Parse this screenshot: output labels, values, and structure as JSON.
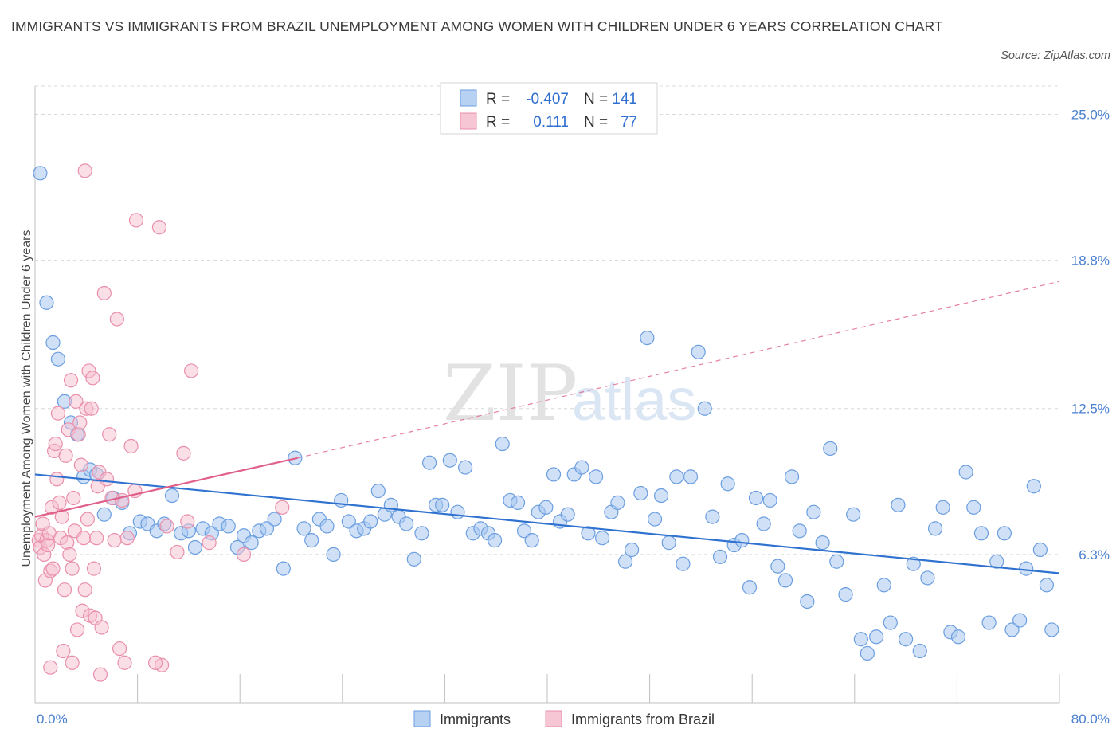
{
  "header": {
    "title": "IMMIGRANTS VS IMMIGRANTS FROM BRAZIL UNEMPLOYMENT AMONG WOMEN WITH CHILDREN UNDER 6 YEARS CORRELATION CHART",
    "source": "Source: ZipAtlas.com"
  },
  "watermark": {
    "zip": "ZIP",
    "atlas": "atlas"
  },
  "legend": {
    "rows": [
      {
        "r_label": "R =",
        "r_value": "-0.407",
        "n_label": "N =",
        "n_value": "141"
      },
      {
        "r_label": "R =",
        "r_value": "0.111",
        "n_label": "N =",
        "n_value": "77"
      }
    ]
  },
  "bottom_legend": {
    "items": [
      "Immigrants",
      "Immigrants from Brazil"
    ]
  },
  "colors": {
    "blue_fill": "#a9c8f0",
    "blue_stroke": "#6b9ee0",
    "blue_line": "#2f72cf",
    "pink_fill": "#f6bfd0",
    "pink_stroke": "#e98fab",
    "pink_line": "#e0608a",
    "tick_text": "#4a7fd0",
    "grid": "#d8d8d8"
  },
  "chart_data": {
    "type": "scatter",
    "title": "IMMIGRANTS VS IMMIGRANTS FROM BRAZIL UNEMPLOYMENT AMONG WOMEN WITH CHILDREN UNDER 6 YEARS CORRELATION CHART",
    "xlabel": "",
    "ylabel": "Unemployment Among Women with Children Under 6 years",
    "xlim": [
      0,
      80
    ],
    "ylim": [
      0,
      26.2
    ],
    "x_tick_labels": [
      "0.0%",
      "80.0%"
    ],
    "y_ticks": [
      6.3,
      12.5,
      18.8,
      25.0
    ],
    "y_tick_labels": [
      "6.3%",
      "12.5%",
      "18.8%",
      "25.0%"
    ],
    "grid": "horizontal dashed",
    "legend_placement": "top-center",
    "series": [
      {
        "name": "Immigrants",
        "r": -0.407,
        "n": 141,
        "trend": {
          "x": [
            0,
            80
          ],
          "y": [
            9.7,
            5.5
          ],
          "style": "solid"
        },
        "points": [
          [
            0.4,
            22.5
          ],
          [
            0.9,
            17.0
          ],
          [
            1.4,
            15.3
          ],
          [
            1.8,
            14.6
          ],
          [
            2.3,
            12.8
          ],
          [
            2.8,
            11.9
          ],
          [
            3.3,
            11.4
          ],
          [
            3.8,
            9.6
          ],
          [
            4.3,
            9.9
          ],
          [
            4.8,
            9.7
          ],
          [
            5.4,
            8.0
          ],
          [
            6.1,
            8.7
          ],
          [
            6.8,
            8.5
          ],
          [
            7.4,
            7.2
          ],
          [
            8.2,
            7.7
          ],
          [
            8.8,
            7.6
          ],
          [
            9.5,
            7.3
          ],
          [
            10.1,
            7.6
          ],
          [
            10.7,
            8.8
          ],
          [
            11.4,
            7.2
          ],
          [
            12.0,
            7.3
          ],
          [
            12.5,
            6.6
          ],
          [
            13.1,
            7.4
          ],
          [
            13.8,
            7.2
          ],
          [
            14.4,
            7.6
          ],
          [
            15.1,
            7.5
          ],
          [
            15.8,
            6.6
          ],
          [
            16.3,
            7.1
          ],
          [
            16.9,
            6.8
          ],
          [
            17.5,
            7.3
          ],
          [
            18.1,
            7.4
          ],
          [
            18.7,
            7.8
          ],
          [
            19.4,
            5.7
          ],
          [
            20.3,
            10.4
          ],
          [
            21.0,
            7.4
          ],
          [
            21.6,
            6.9
          ],
          [
            22.2,
            7.8
          ],
          [
            22.8,
            7.5
          ],
          [
            23.3,
            6.3
          ],
          [
            23.9,
            8.6
          ],
          [
            24.5,
            7.7
          ],
          [
            25.1,
            7.3
          ],
          [
            25.7,
            7.4
          ],
          [
            26.2,
            7.7
          ],
          [
            26.8,
            9.0
          ],
          [
            27.3,
            8.0
          ],
          [
            27.8,
            8.4
          ],
          [
            28.4,
            7.9
          ],
          [
            29.0,
            7.6
          ],
          [
            29.6,
            6.1
          ],
          [
            30.2,
            7.2
          ],
          [
            30.8,
            10.2
          ],
          [
            31.3,
            8.4
          ],
          [
            31.8,
            8.4
          ],
          [
            32.4,
            10.3
          ],
          [
            33.0,
            8.1
          ],
          [
            33.6,
            10.0
          ],
          [
            34.2,
            7.2
          ],
          [
            34.8,
            7.4
          ],
          [
            35.4,
            7.2
          ],
          [
            35.9,
            6.9
          ],
          [
            36.5,
            11.0
          ],
          [
            37.1,
            8.6
          ],
          [
            37.7,
            8.5
          ],
          [
            38.2,
            7.3
          ],
          [
            38.8,
            6.9
          ],
          [
            39.3,
            8.1
          ],
          [
            39.9,
            8.3
          ],
          [
            40.5,
            9.7
          ],
          [
            41.0,
            7.7
          ],
          [
            41.6,
            8.0
          ],
          [
            42.1,
            9.7
          ],
          [
            42.7,
            10.0
          ],
          [
            43.2,
            7.2
          ],
          [
            43.8,
            9.6
          ],
          [
            44.3,
            7.0
          ],
          [
            45.0,
            8.1
          ],
          [
            45.5,
            8.5
          ],
          [
            46.1,
            6.0
          ],
          [
            46.6,
            6.5
          ],
          [
            47.3,
            8.9
          ],
          [
            47.8,
            15.5
          ],
          [
            48.4,
            7.8
          ],
          [
            48.9,
            8.8
          ],
          [
            49.5,
            6.8
          ],
          [
            50.1,
            9.6
          ],
          [
            50.6,
            5.9
          ],
          [
            51.2,
            9.6
          ],
          [
            51.8,
            14.9
          ],
          [
            52.3,
            12.5
          ],
          [
            52.9,
            7.9
          ],
          [
            53.5,
            6.2
          ],
          [
            54.1,
            9.3
          ],
          [
            54.6,
            6.7
          ],
          [
            55.2,
            6.9
          ],
          [
            55.8,
            4.9
          ],
          [
            56.3,
            8.7
          ],
          [
            56.9,
            7.6
          ],
          [
            57.4,
            8.6
          ],
          [
            58.0,
            5.8
          ],
          [
            58.6,
            5.2
          ],
          [
            59.1,
            9.6
          ],
          [
            59.7,
            7.3
          ],
          [
            60.3,
            4.3
          ],
          [
            60.8,
            8.1
          ],
          [
            61.5,
            6.8
          ],
          [
            62.1,
            10.8
          ],
          [
            62.6,
            6.0
          ],
          [
            63.3,
            4.6
          ],
          [
            63.9,
            8.0
          ],
          [
            64.5,
            2.7
          ],
          [
            65.0,
            2.1
          ],
          [
            65.7,
            2.8
          ],
          [
            66.3,
            5.0
          ],
          [
            66.8,
            3.4
          ],
          [
            67.4,
            8.4
          ],
          [
            68.0,
            2.7
          ],
          [
            68.6,
            5.9
          ],
          [
            69.1,
            2.2
          ],
          [
            69.7,
            5.3
          ],
          [
            70.3,
            7.4
          ],
          [
            70.9,
            8.3
          ],
          [
            71.5,
            3.0
          ],
          [
            72.1,
            2.8
          ],
          [
            72.7,
            9.8
          ],
          [
            73.3,
            8.3
          ],
          [
            73.9,
            7.2
          ],
          [
            74.5,
            3.4
          ],
          [
            75.1,
            6.0
          ],
          [
            75.7,
            7.2
          ],
          [
            76.3,
            3.1
          ],
          [
            76.9,
            3.5
          ],
          [
            77.4,
            5.7
          ],
          [
            78.0,
            9.2
          ],
          [
            78.5,
            6.5
          ],
          [
            79.0,
            5.0
          ],
          [
            79.4,
            3.1
          ]
        ]
      },
      {
        "name": "Immigrants from Brazil",
        "r": 0.111,
        "n": 77,
        "trend_solid": {
          "x": [
            0,
            20.5
          ],
          "y": [
            7.9,
            10.4
          ]
        },
        "trend_dashed": {
          "x": [
            20.5,
            80
          ],
          "y": [
            10.4,
            17.9
          ]
        },
        "points": [
          [
            0.3,
            6.9
          ],
          [
            0.4,
            6.6
          ],
          [
            0.5,
            7.1
          ],
          [
            0.6,
            7.6
          ],
          [
            0.7,
            6.3
          ],
          [
            0.8,
            5.2
          ],
          [
            0.9,
            6.9
          ],
          [
            1.0,
            6.7
          ],
          [
            1.1,
            7.2
          ],
          [
            1.2,
            5.6
          ],
          [
            1.3,
            8.3
          ],
          [
            1.4,
            5.7
          ],
          [
            1.5,
            10.7
          ],
          [
            1.6,
            11.0
          ],
          [
            1.7,
            9.5
          ],
          [
            1.8,
            12.3
          ],
          [
            1.9,
            8.5
          ],
          [
            2.0,
            7.0
          ],
          [
            2.1,
            7.9
          ],
          [
            2.2,
            2.2
          ],
          [
            2.3,
            4.8
          ],
          [
            2.4,
            10.5
          ],
          [
            2.5,
            6.8
          ],
          [
            2.6,
            11.6
          ],
          [
            2.7,
            6.3
          ],
          [
            2.8,
            13.7
          ],
          [
            2.9,
            5.7
          ],
          [
            3.0,
            8.7
          ],
          [
            3.1,
            7.3
          ],
          [
            3.2,
            12.8
          ],
          [
            3.3,
            3.1
          ],
          [
            3.4,
            11.4
          ],
          [
            3.5,
            11.9
          ],
          [
            3.6,
            10.1
          ],
          [
            3.7,
            3.9
          ],
          [
            3.8,
            7.0
          ],
          [
            3.9,
            4.8
          ],
          [
            4.0,
            12.5
          ],
          [
            4.1,
            7.8
          ],
          [
            4.2,
            14.1
          ],
          [
            4.3,
            3.7
          ],
          [
            4.4,
            12.5
          ],
          [
            4.5,
            13.8
          ],
          [
            4.6,
            5.7
          ],
          [
            4.7,
            3.6
          ],
          [
            4.8,
            7.0
          ],
          [
            4.9,
            9.2
          ],
          [
            5.0,
            9.8
          ],
          [
            5.1,
            1.2
          ],
          [
            5.2,
            3.2
          ],
          [
            5.4,
            17.4
          ],
          [
            5.6,
            9.5
          ],
          [
            5.8,
            11.4
          ],
          [
            6.0,
            8.7
          ],
          [
            6.2,
            6.9
          ],
          [
            6.4,
            16.3
          ],
          [
            6.6,
            2.3
          ],
          [
            6.8,
            8.6
          ],
          [
            7.0,
            1.7
          ],
          [
            7.2,
            7.0
          ],
          [
            7.5,
            10.9
          ],
          [
            7.8,
            9.0
          ],
          [
            3.9,
            22.6
          ],
          [
            7.9,
            20.5
          ],
          [
            9.7,
            20.2
          ],
          [
            12.2,
            14.1
          ],
          [
            11.6,
            10.6
          ],
          [
            9.9,
            1.6
          ],
          [
            9.4,
            1.7
          ],
          [
            10.3,
            7.5
          ],
          [
            11.1,
            6.4
          ],
          [
            11.9,
            7.7
          ],
          [
            13.6,
            6.8
          ],
          [
            16.3,
            6.3
          ],
          [
            19.3,
            8.3
          ],
          [
            2.9,
            1.7
          ],
          [
            1.2,
            1.5
          ]
        ]
      }
    ]
  }
}
